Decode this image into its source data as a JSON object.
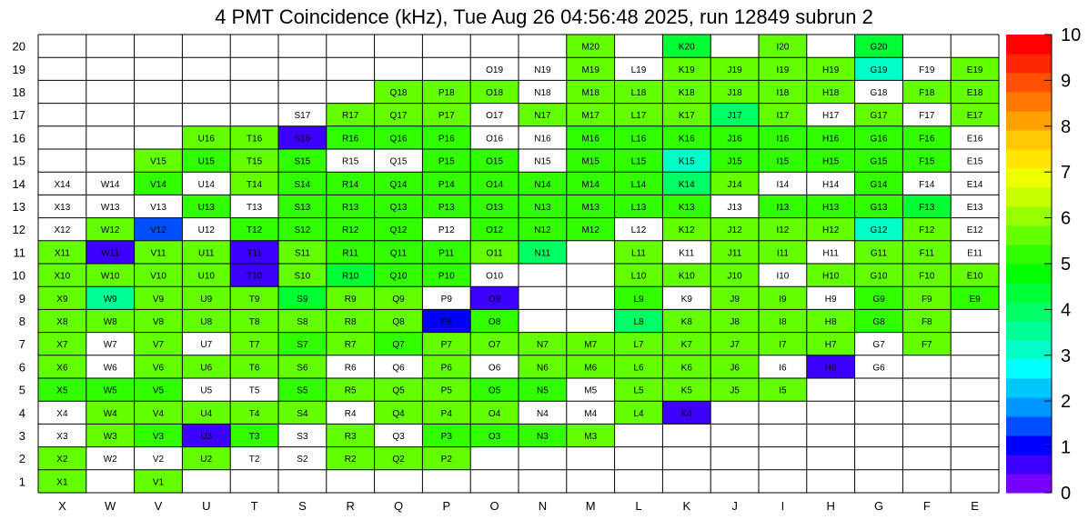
{
  "chart_data": {
    "type": "heatmap",
    "title": "4 PMT Coincidence (kHz), Tue Aug 26 04:56:48 2025, run 12849 subrun 2",
    "columns": [
      "X",
      "W",
      "V",
      "U",
      "T",
      "S",
      "R",
      "Q",
      "P",
      "O",
      "N",
      "M",
      "L",
      "K",
      "J",
      "I",
      "H",
      "G",
      "F",
      "E"
    ],
    "rows": [
      1,
      2,
      3,
      4,
      5,
      6,
      7,
      8,
      9,
      10,
      11,
      12,
      13,
      14,
      15,
      16,
      17,
      18,
      19,
      20
    ],
    "zlim": [
      0,
      10
    ],
    "colorbar_ticks": [
      "0",
      "1",
      "2",
      "3",
      "4",
      "5",
      "6",
      "7",
      "8",
      "9",
      "10"
    ],
    "empty_value": null,
    "row_values": {
      "20": [
        null,
        null,
        null,
        null,
        null,
        null,
        null,
        null,
        null,
        null,
        null,
        5.5,
        null,
        4.5,
        null,
        5.5,
        null,
        4.5,
        null,
        null
      ],
      "19": [
        null,
        null,
        null,
        null,
        null,
        null,
        null,
        null,
        null,
        0,
        0,
        5.5,
        0,
        5.5,
        5.5,
        5.5,
        5.5,
        3.0,
        0,
        5.5
      ],
      "18": [
        null,
        null,
        null,
        null,
        null,
        null,
        null,
        5.5,
        5.5,
        5.5,
        0,
        5.5,
        5.5,
        5.5,
        5.5,
        5.5,
        5.5,
        0,
        5.5,
        5.5
      ],
      "17": [
        null,
        null,
        null,
        null,
        null,
        0,
        5.5,
        5.5,
        5.5,
        0,
        5.5,
        5.5,
        5.5,
        5.5,
        4.0,
        5.5,
        0,
        5.5,
        0,
        5.5
      ],
      "16": [
        null,
        null,
        null,
        5.5,
        5.5,
        0.5,
        5.0,
        5.0,
        5.0,
        0,
        0,
        5.0,
        5.0,
        5.0,
        5.0,
        5.0,
        5.0,
        5.0,
        5.0,
        0
      ],
      "15": [
        null,
        null,
        5.5,
        5.0,
        5.5,
        5.0,
        0,
        0,
        5.0,
        5.0,
        0,
        5.0,
        5.0,
        3.0,
        5.0,
        5.0,
        5.0,
        5.0,
        5.0,
        0
      ],
      "14": [
        0,
        0,
        5.0,
        0,
        5.5,
        5.0,
        5.0,
        5.0,
        5.0,
        5.0,
        5.0,
        5.0,
        5.0,
        4.0,
        5.5,
        0,
        0,
        5.0,
        0,
        0
      ],
      "13": [
        0,
        0,
        0,
        5.0,
        0,
        5.0,
        5.0,
        5.0,
        5.0,
        5.0,
        5.0,
        5.0,
        5.0,
        5.0,
        0,
        5.0,
        5.0,
        5.0,
        4.5,
        0
      ],
      "12": [
        0,
        5.5,
        1.5,
        0,
        5.0,
        5.0,
        5.0,
        5.0,
        0,
        5.0,
        5.0,
        5.0,
        0,
        5.5,
        5.5,
        5.5,
        5.5,
        3.0,
        5.5,
        0
      ],
      "11": [
        5.5,
        0.5,
        5.5,
        5.5,
        0.5,
        5.5,
        5.0,
        5.0,
        5.0,
        5.5,
        4.0,
        null,
        5.5,
        0,
        5.5,
        5.5,
        0,
        5.5,
        5.5,
        0
      ],
      "10": [
        5.5,
        5.5,
        5.5,
        5.5,
        0.5,
        5.5,
        4.5,
        5.0,
        5.0,
        0,
        null,
        null,
        5.5,
        5.5,
        5.5,
        0,
        5.5,
        5.5,
        5.5,
        5.5
      ],
      "9": [
        5.5,
        3.5,
        5.5,
        5.5,
        5.5,
        4.5,
        5.5,
        5.5,
        0,
        0.5,
        null,
        null,
        5.0,
        0,
        5.5,
        5.5,
        0,
        5.0,
        5.5,
        5.0
      ],
      "8": [
        5.5,
        5.5,
        5.5,
        5.5,
        5.5,
        5.5,
        5.5,
        5.5,
        0.9,
        5.0,
        null,
        null,
        4.0,
        5.5,
        5.5,
        5.5,
        5.5,
        5.0,
        5.5,
        null
      ],
      "7": [
        5.5,
        0,
        5.5,
        0,
        5.5,
        5.0,
        5.5,
        5.0,
        5.5,
        5.5,
        5.5,
        5.5,
        5.5,
        5.5,
        5.5,
        5.5,
        5.5,
        0,
        5.5,
        null
      ],
      "6": [
        5.5,
        0,
        5.5,
        5.5,
        5.5,
        5.5,
        0,
        0,
        5.5,
        0,
        5.5,
        5.5,
        5.5,
        5.5,
        5.5,
        0,
        0.5,
        0,
        null,
        null
      ],
      "5": [
        5.0,
        5.0,
        5.0,
        0,
        0,
        5.0,
        5.5,
        5.5,
        5.5,
        5.0,
        5.0,
        0,
        5.5,
        5.5,
        5.5,
        5.5,
        null,
        null,
        null,
        null
      ],
      "4": [
        0,
        5.5,
        5.5,
        5.5,
        5.5,
        5.5,
        0,
        5.5,
        5.5,
        5.5,
        0,
        0,
        5.5,
        0.5,
        null,
        null,
        null,
        null,
        null,
        null
      ],
      "3": [
        0,
        5.5,
        5.0,
        0.5,
        5.0,
        0,
        5.5,
        0,
        5.0,
        5.0,
        5.0,
        5.5,
        null,
        null,
        null,
        null,
        null,
        null,
        null,
        null
      ],
      "2": [
        5.5,
        0,
        0,
        5.5,
        0,
        0,
        5.5,
        5.5,
        5.5,
        null,
        null,
        null,
        null,
        null,
        null,
        null,
        null,
        null,
        null,
        null
      ],
      "1": [
        5.5,
        null,
        5.5,
        null,
        null,
        null,
        null,
        null,
        null,
        null,
        null,
        null,
        null,
        null,
        null,
        null,
        null,
        null,
        null,
        null
      ]
    },
    "palette": [
      "#7800ff",
      "#3c00ff",
      "#0000ff",
      "#0050ff",
      "#0096ff",
      "#00c8ff",
      "#00ffff",
      "#00ffc8",
      "#00ff96",
      "#00ff64",
      "#00ff32",
      "#00ff00",
      "#32ff00",
      "#64ff00",
      "#96ff00",
      "#c8ff00",
      "#f0ff00",
      "#ffe600",
      "#ffc800",
      "#ffa000",
      "#ff7800",
      "#ff5000",
      "#ff2800",
      "#ff0000"
    ]
  }
}
